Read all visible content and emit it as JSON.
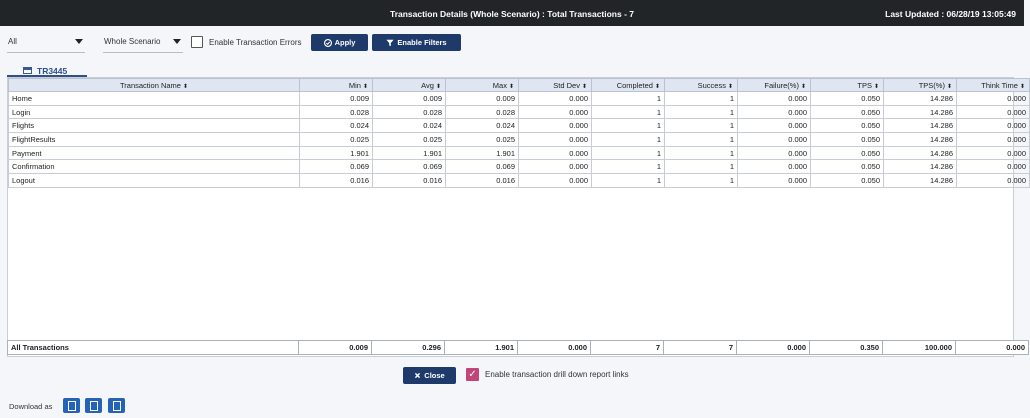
{
  "header": {
    "title": "Transaction Details (Whole Scenario) : Total Transactions - 7",
    "last_updated": "Last Updated : 06/28/19 13:05:49"
  },
  "toolbar": {
    "group_select": "All",
    "scope_select": "Whole Scenario",
    "enable_errors_label": "Enable Transaction Errors",
    "apply_label": "Apply",
    "filters_label": "Enable Filters"
  },
  "tab": {
    "label": "TR3445"
  },
  "table": {
    "columns": [
      "Transaction Name",
      "Min",
      "Avg",
      "Max",
      "Std Dev",
      "Completed",
      "Success",
      "Failure(%)",
      "TPS",
      "TPS(%)",
      "Think Time"
    ],
    "rows": [
      [
        "Home",
        "0.009",
        "0.009",
        "0.009",
        "0.000",
        "1",
        "1",
        "0.000",
        "0.050",
        "14.286",
        "0.000"
      ],
      [
        "Login",
        "0.028",
        "0.028",
        "0.028",
        "0.000",
        "1",
        "1",
        "0.000",
        "0.050",
        "14.286",
        "0.000"
      ],
      [
        "Flights",
        "0.024",
        "0.024",
        "0.024",
        "0.000",
        "1",
        "1",
        "0.000",
        "0.050",
        "14.286",
        "0.000"
      ],
      [
        "FlightResults",
        "0.025",
        "0.025",
        "0.025",
        "0.000",
        "1",
        "1",
        "0.000",
        "0.050",
        "14.286",
        "0.000"
      ],
      [
        "Payment",
        "1.901",
        "1.901",
        "1.901",
        "0.000",
        "1",
        "1",
        "0.000",
        "0.050",
        "14.286",
        "0.000"
      ],
      [
        "Confirmation",
        "0.069",
        "0.069",
        "0.069",
        "0.000",
        "1",
        "1",
        "0.000",
        "0.050",
        "14.286",
        "0.000"
      ],
      [
        "Logout",
        "0.016",
        "0.016",
        "0.016",
        "0.000",
        "1",
        "1",
        "0.000",
        "0.050",
        "14.286",
        "0.000"
      ]
    ],
    "totals": [
      "All Transactions",
      "0.009",
      "0.296",
      "1.901",
      "0.000",
      "7",
      "7",
      "0.000",
      "0.350",
      "100.000",
      "0.000"
    ]
  },
  "bottom": {
    "close_label": "Close",
    "drilldown_label": "Enable transaction drill down report links",
    "download_label": "Download as"
  },
  "colors": {
    "header_bg": "#222528",
    "button_bg": "#1d3a6b",
    "checkbox_checked": "#c2457a",
    "download_btn": "#2463b8"
  },
  "icons": {
    "apply": "check-circle-icon",
    "filter": "filter-icon",
    "close": "close-icon",
    "tab": "table-icon",
    "download": [
      "pdf-icon",
      "excel-icon",
      "word-icon"
    ]
  }
}
